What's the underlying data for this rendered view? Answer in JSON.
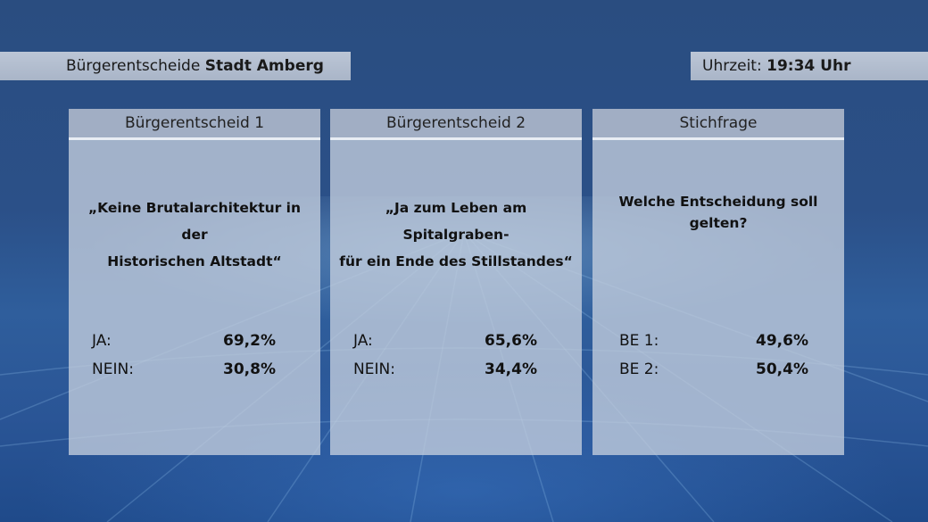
{
  "header": {
    "title_prefix": "Bürgerentscheide",
    "title_bold": "Stadt Amberg"
  },
  "time": {
    "label": "Uhrzeit:",
    "value": "19:34 Uhr"
  },
  "cards": [
    {
      "title": "Bürgerentscheid 1",
      "question_lines": [
        "„Keine Brutalarchitektur in der",
        "Historischen Altstadt“"
      ],
      "results": [
        {
          "label": "JA:",
          "value": "69,2%"
        },
        {
          "label": "NEIN:",
          "value": "30,8%"
        }
      ]
    },
    {
      "title": "Bürgerentscheid 2",
      "question_lines": [
        "„Ja zum Leben am Spitalgraben-",
        "für ein Ende des Stillstandes“"
      ],
      "results": [
        {
          "label": "JA:",
          "value": "65,6%"
        },
        {
          "label": "NEIN:",
          "value": "34,4%"
        }
      ]
    },
    {
      "title": "Stichfrage",
      "question_lines": [
        "Welche Entscheidung soll",
        "gelten?"
      ],
      "results": [
        {
          "label": "BE 1:",
          "value": "49,6%"
        },
        {
          "label": "BE 2:",
          "value": "50,4%"
        }
      ]
    }
  ]
}
